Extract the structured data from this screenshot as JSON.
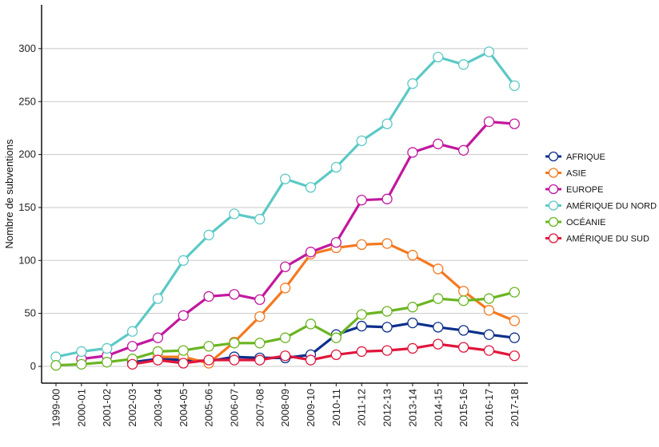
{
  "chart_data": {
    "type": "line",
    "title": "",
    "xlabel": "",
    "ylabel": "Nombre de subventions",
    "ylim": [
      0,
      320
    ],
    "yticks": [
      0,
      50,
      100,
      150,
      200,
      250,
      300
    ],
    "grid": "horizontal",
    "legend_position": "right",
    "categories": [
      "1999-00",
      "2000-01",
      "2001-02",
      "2002-03",
      "2003-04",
      "2004-05",
      "2005-06",
      "2006-07",
      "2007-08",
      "2008-09",
      "2009-10",
      "2010-11",
      "2011-12",
      "2012-13",
      "2013-14",
      "2014-15",
      "2015-16",
      "2016-17",
      "2017-18"
    ],
    "series": [
      {
        "name": "AFRIQUE",
        "color": "#0d2f8c",
        "values": [
          null,
          null,
          null,
          4,
          7,
          6,
          5,
          9,
          8,
          8,
          11,
          30,
          38,
          37,
          41,
          37,
          34,
          30,
          27
        ]
      },
      {
        "name": "ASIE",
        "color": "#f4791f",
        "values": [
          null,
          null,
          null,
          null,
          9,
          9,
          3,
          23,
          47,
          74,
          106,
          112,
          115,
          116,
          105,
          92,
          71,
          53,
          43
        ]
      },
      {
        "name": "EUROPE",
        "color": "#c2189e",
        "values": [
          null,
          7,
          10,
          19,
          27,
          48,
          66,
          68,
          63,
          94,
          108,
          117,
          157,
          158,
          202,
          210,
          204,
          231,
          229
        ]
      },
      {
        "name": "AMÉRIQUE DU NORD",
        "color": "#5cc9c6",
        "values": [
          9,
          14,
          17,
          33,
          64,
          100,
          124,
          144,
          139,
          177,
          169,
          188,
          213,
          229,
          267,
          292,
          285,
          297,
          265
        ]
      },
      {
        "name": "OCÉANIE",
        "color": "#6ab521",
        "values": [
          1,
          2,
          4,
          7,
          14,
          15,
          19,
          22,
          22,
          27,
          40,
          27,
          49,
          52,
          56,
          64,
          62,
          64,
          70
        ]
      },
      {
        "name": "AMÉRIQUE DU SUD",
        "color": "#e0163c",
        "values": [
          null,
          null,
          null,
          2,
          6,
          3,
          6,
          6,
          6,
          10,
          6,
          11,
          14,
          15,
          17,
          21,
          18,
          15,
          10
        ]
      }
    ]
  }
}
